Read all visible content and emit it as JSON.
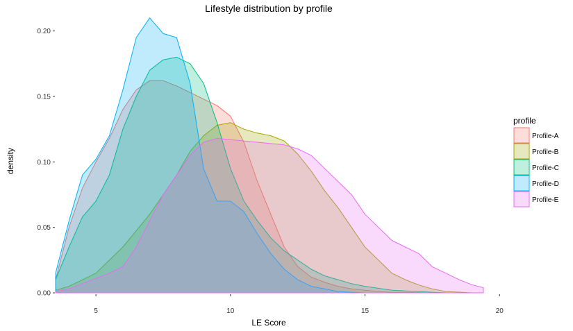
{
  "chart_data": {
    "type": "area",
    "title": "Lifestyle distribution by profile",
    "xlabel": "LE Score",
    "ylabel": "density",
    "xlim": [
      3.5,
      19.4
    ],
    "ylim": [
      0,
      0.212
    ],
    "x_ticks": [
      5,
      10,
      15,
      20
    ],
    "y_ticks": [
      0.0,
      0.05,
      0.1,
      0.15,
      0.2
    ],
    "y_tick_labels": [
      "0.00",
      "0.05",
      "0.10",
      "0.15",
      "0.20"
    ],
    "grid": false,
    "legend": {
      "title": "profile",
      "position": "right"
    },
    "series": [
      {
        "name": "Profile-A",
        "color": "#F8766D",
        "x": [
          3.5,
          4.0,
          4.5,
          5.0,
          5.5,
          6.0,
          6.5,
          7.0,
          7.5,
          8.0,
          8.5,
          9.0,
          9.5,
          10.0,
          10.5,
          11.0,
          11.5,
          12.0,
          12.5,
          13.0,
          13.5,
          14.0,
          14.5,
          15.0,
          15.5,
          16.0,
          17.0,
          18.0,
          19.0
        ],
        "y": [
          0.01,
          0.05,
          0.08,
          0.1,
          0.118,
          0.14,
          0.155,
          0.162,
          0.162,
          0.158,
          0.153,
          0.148,
          0.143,
          0.135,
          0.115,
          0.085,
          0.06,
          0.035,
          0.02,
          0.012,
          0.008,
          0.005,
          0.003,
          0.002,
          0.001,
          0.0005,
          0.0002,
          0.0,
          0.0
        ]
      },
      {
        "name": "Profile-B",
        "color": "#A3A500",
        "x": [
          3.5,
          4.0,
          5.0,
          6.0,
          7.0,
          7.5,
          8.0,
          8.5,
          9.0,
          9.5,
          10.0,
          10.5,
          11.0,
          11.5,
          12.0,
          12.5,
          13.0,
          13.5,
          14.0,
          14.5,
          15.0,
          15.5,
          16.0,
          16.5,
          17.0,
          17.5,
          18.0,
          19.0
        ],
        "y": [
          0.002,
          0.005,
          0.015,
          0.035,
          0.06,
          0.075,
          0.09,
          0.108,
          0.12,
          0.128,
          0.13,
          0.125,
          0.122,
          0.12,
          0.116,
          0.106,
          0.093,
          0.078,
          0.065,
          0.05,
          0.035,
          0.025,
          0.015,
          0.01,
          0.006,
          0.003,
          0.001,
          0.0
        ]
      },
      {
        "name": "Profile-C",
        "color": "#00BF7D",
        "x": [
          3.5,
          4.0,
          4.5,
          5.0,
          5.5,
          6.0,
          6.5,
          7.0,
          7.5,
          8.0,
          8.5,
          9.0,
          9.5,
          10.0,
          10.5,
          11.0,
          11.5,
          12.0,
          12.5,
          13.0,
          13.5,
          14.0,
          14.5,
          15.0,
          16.0,
          17.0,
          18.0,
          19.0
        ],
        "y": [
          0.01,
          0.035,
          0.058,
          0.07,
          0.09,
          0.125,
          0.15,
          0.17,
          0.178,
          0.18,
          0.175,
          0.16,
          0.13,
          0.095,
          0.07,
          0.055,
          0.042,
          0.032,
          0.025,
          0.018,
          0.013,
          0.01,
          0.007,
          0.005,
          0.002,
          0.001,
          0.0,
          0.0
        ]
      },
      {
        "name": "Profile-D",
        "color": "#00B0F6",
        "x": [
          3.5,
          4.0,
          4.5,
          5.0,
          5.5,
          6.0,
          6.5,
          7.0,
          7.5,
          8.0,
          8.5,
          9.0,
          9.5,
          10.0,
          10.5,
          11.0,
          11.5,
          12.0,
          12.5,
          13.0,
          13.5,
          14.0,
          15.0,
          16.0,
          17.0,
          18.0,
          19.0
        ],
        "y": [
          0.015,
          0.055,
          0.09,
          0.102,
          0.12,
          0.155,
          0.195,
          0.21,
          0.198,
          0.195,
          0.16,
          0.095,
          0.07,
          0.07,
          0.062,
          0.045,
          0.03,
          0.018,
          0.01,
          0.005,
          0.003,
          0.001,
          0.0,
          0.0,
          0.0,
          0.0,
          0.0
        ]
      },
      {
        "name": "Profile-E",
        "color": "#E76BF3",
        "x": [
          3.5,
          4.0,
          4.5,
          5.0,
          5.5,
          6.0,
          6.5,
          7.0,
          7.5,
          8.0,
          8.5,
          9.0,
          9.5,
          10.0,
          10.5,
          11.0,
          11.5,
          12.0,
          12.5,
          13.0,
          13.5,
          14.0,
          14.5,
          15.0,
          15.5,
          16.0,
          16.5,
          17.0,
          17.5,
          18.0,
          18.5,
          19.0,
          19.4
        ],
        "y": [
          0.001,
          0.003,
          0.007,
          0.011,
          0.015,
          0.02,
          0.035,
          0.055,
          0.075,
          0.09,
          0.105,
          0.115,
          0.118,
          0.117,
          0.116,
          0.115,
          0.114,
          0.113,
          0.11,
          0.105,
          0.095,
          0.085,
          0.075,
          0.06,
          0.05,
          0.04,
          0.035,
          0.03,
          0.02,
          0.015,
          0.01,
          0.006,
          0.004
        ]
      }
    ]
  }
}
